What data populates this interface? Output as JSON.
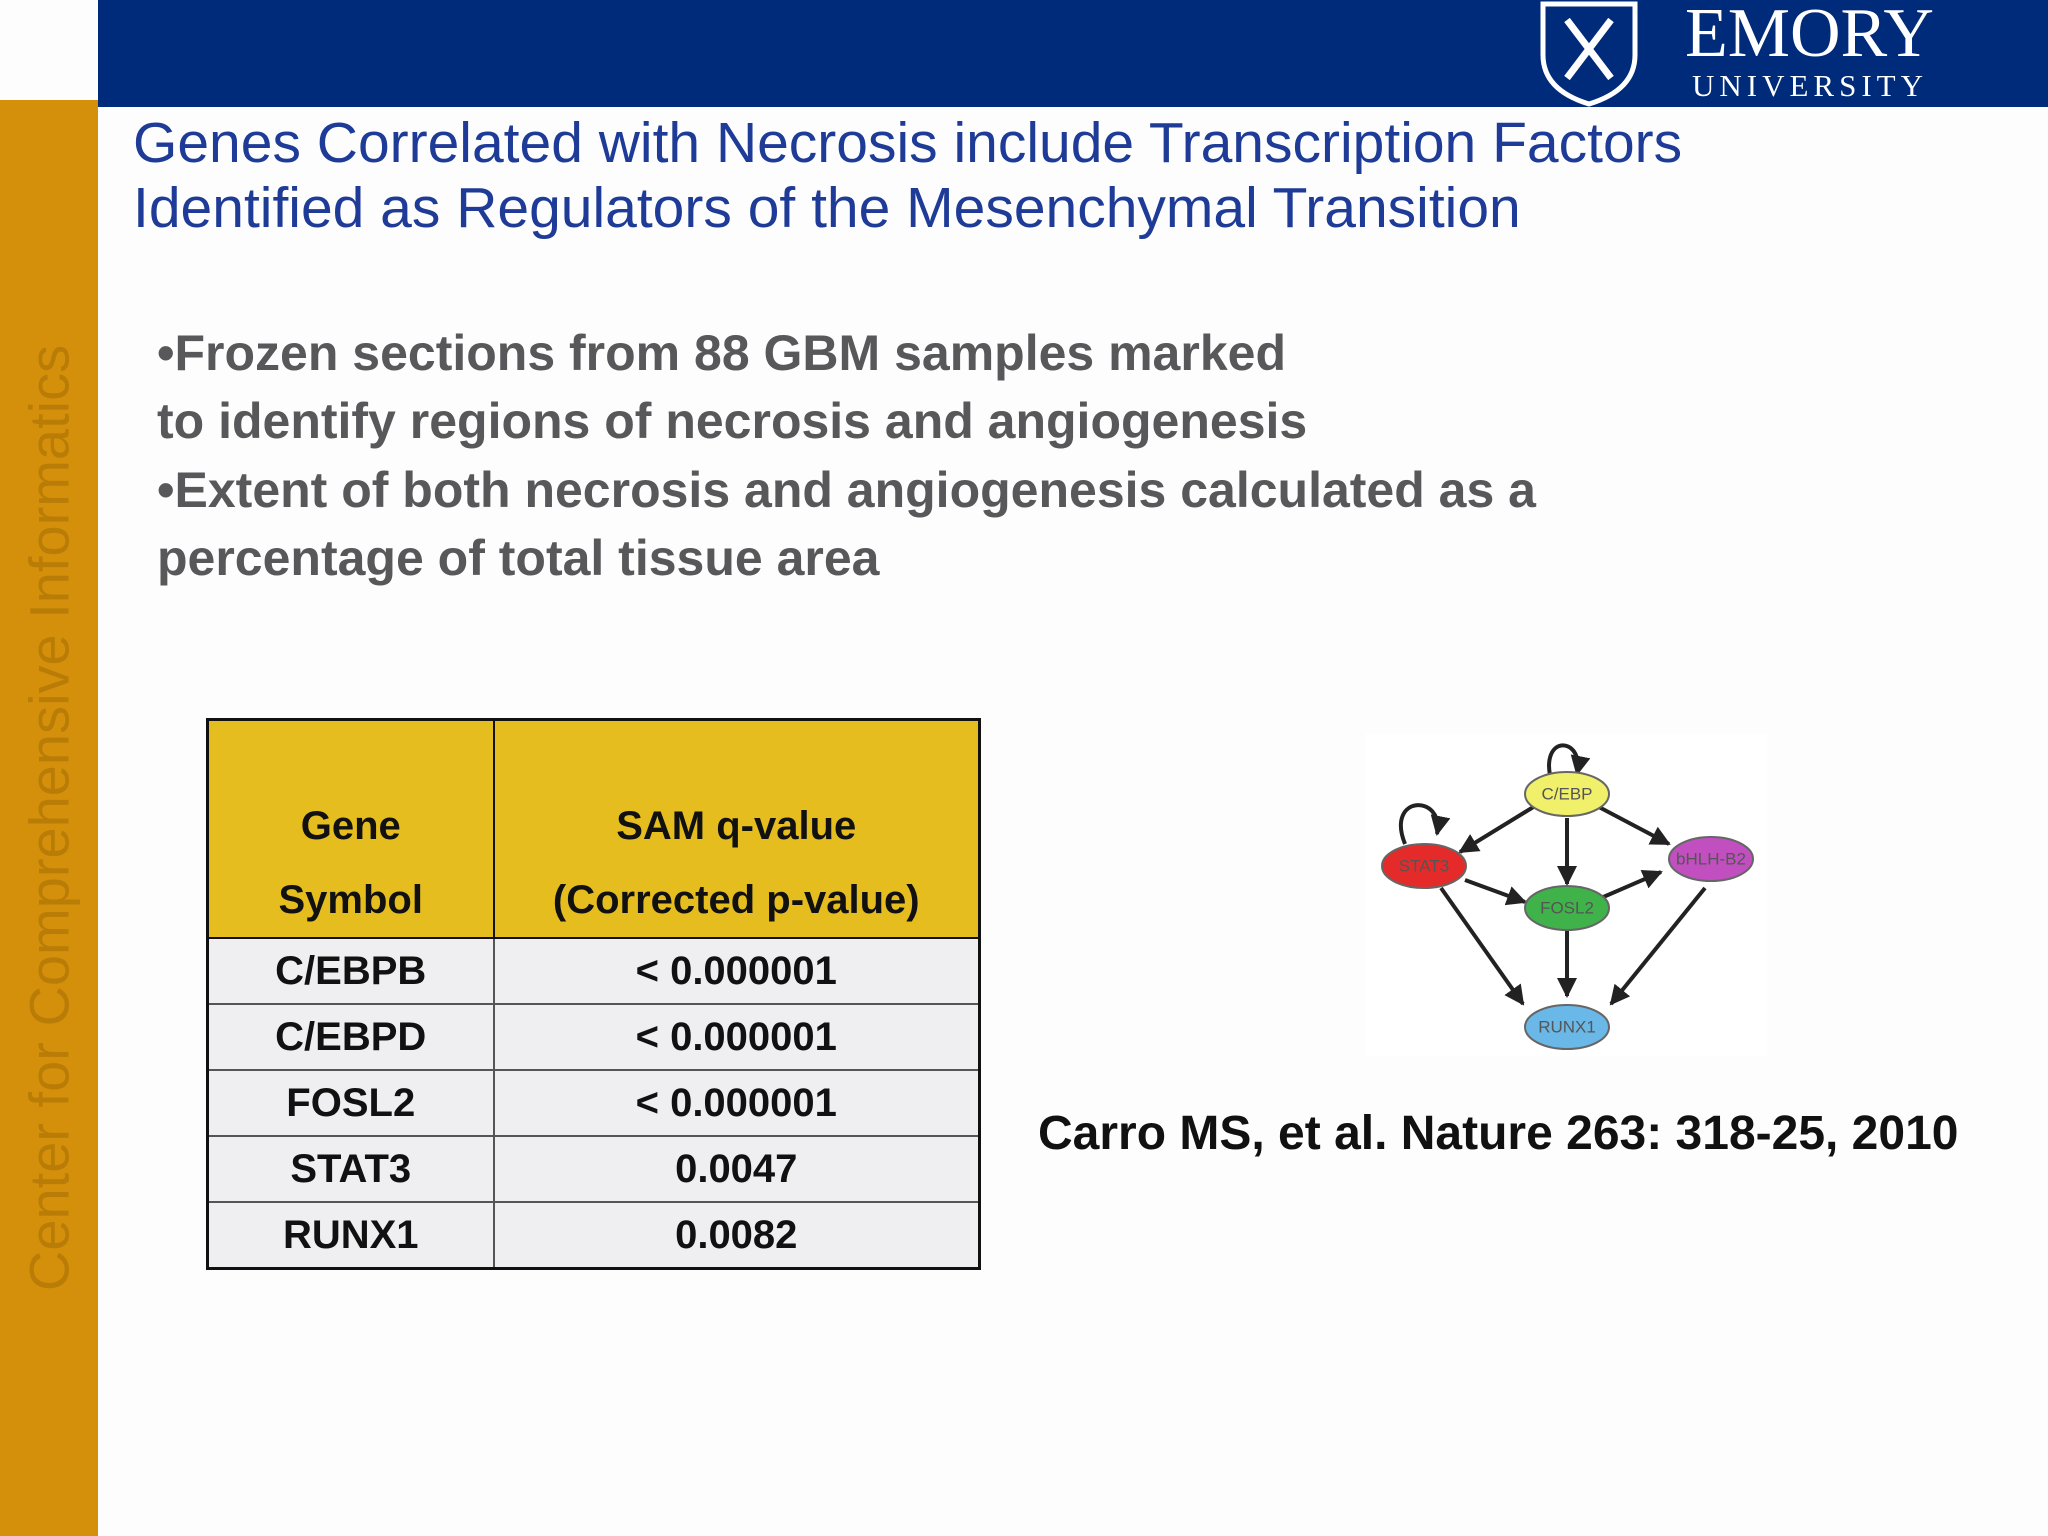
{
  "header": {
    "logo_name": "EMORY",
    "logo_sub": "UNIVERSITY"
  },
  "sidebar": "Center for Comprehensive Informatics",
  "title": [
    "Genes Correlated with Necrosis include Transcription Factors",
    "Identified as Regulators of the Mesenchymal Transition"
  ],
  "bullets": [
    "•Frozen sections from 88 GBM samples marked",
    " to identify regions of necrosis and angiogenesis",
    "•Extent of both necrosis and angiogenesis calculated as a",
    "percentage of total tissue area"
  ],
  "table": {
    "header": [
      [
        "Gene",
        "Symbol"
      ],
      [
        "SAM q-value",
        "(Corrected p-value)"
      ]
    ],
    "rows": [
      [
        "C/EBPB",
        "< 0.000001"
      ],
      [
        "C/EBPD",
        "< 0.000001"
      ],
      [
        "FOSL2",
        "< 0.000001"
      ],
      [
        "STAT3",
        "0.0047"
      ],
      [
        "RUNX1",
        "0.0082"
      ]
    ]
  },
  "diagram": {
    "nodes": [
      {
        "label": "C/EBP"
      },
      {
        "label": "STAT3"
      },
      {
        "label": "bHLH-B2"
      },
      {
        "label": "FOSL2"
      },
      {
        "label": "RUNX1"
      }
    ]
  },
  "citation": "Carro MS, et al. Nature 263: 318-25, 2010"
}
